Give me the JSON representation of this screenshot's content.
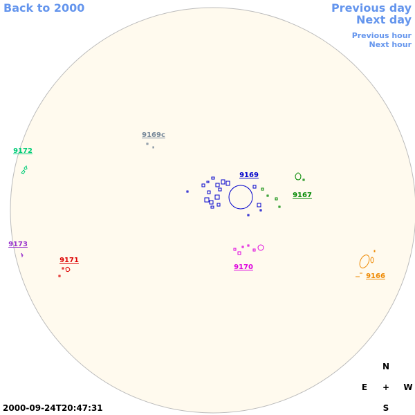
{
  "nav": {
    "back": "Back to 2000",
    "previous_day": "Previous day",
    "next_day": "Next day",
    "previous_hour": "Previous hour",
    "next_hour": "Next hour"
  },
  "regions": [
    {
      "label": "9169c",
      "color": "#778899"
    },
    {
      "label": "9172",
      "color": "#00cc77"
    },
    {
      "label": "9169",
      "color": "#0000cc"
    },
    {
      "label": "9167",
      "color": "#008800"
    },
    {
      "label": "9173",
      "color": "#9933cc"
    },
    {
      "label": "9171",
      "color": "#dd0000"
    },
    {
      "label": "9170",
      "color": "#dd00dd"
    },
    {
      "label": "9166",
      "color": "#ee8800"
    }
  ],
  "timestamp": "2000-09-24T20:47:31",
  "compass": {
    "north": "N",
    "east": "E",
    "center": "+",
    "west": "W",
    "south": "S"
  }
}
